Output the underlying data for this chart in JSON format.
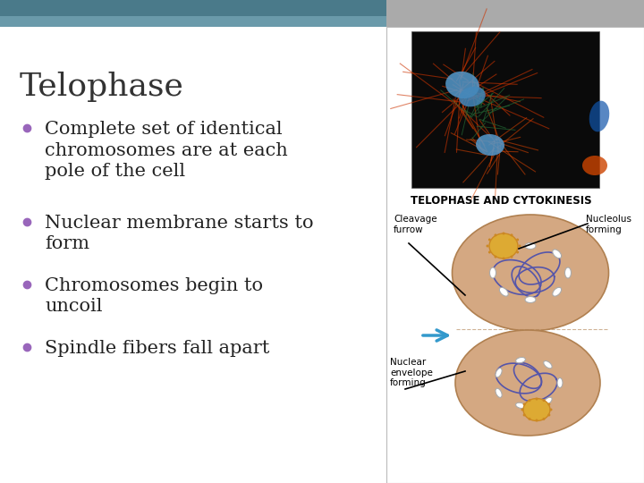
{
  "title": "Telophase",
  "bullets": [
    "Complete set of identical\nchromosomes are at each\npole of the cell",
    "Nuclear membrane starts to\nform",
    "Chromosomes begin to\nuncoil",
    "Spindle fibers fall apart"
  ],
  "bullet_color": "#9966bb",
  "title_color": "#333333",
  "text_color": "#222222",
  "bg_color": "#ffffff",
  "header_bar_color1": "#4a7a8a",
  "header_bar_color2": "#6a9aaa",
  "right_panel_bg": "#ffffff",
  "right_panel_border": "#bbbbbb",
  "diagram_label": "TELOPHASE AND CYTOKINESIS",
  "label_cleavage": "Cleavage\nfurrow",
  "label_nucleolus": "Nucleolus\nforming",
  "label_nuclear": "Nuclear\nenvelope\nforming",
  "cell_color": "#d4a882",
  "cell_edge_color": "#b08050",
  "chromosome_color": "#5555aa",
  "chrom_fill": "#8888cc",
  "nucleolus_color": "#ddaa33",
  "nucleolus_dot_color": "#cc8822",
  "arrow_color": "#3399cc",
  "title_fontsize": 26,
  "bullet_fontsize": 15,
  "diagram_label_fontsize": 8.5,
  "label_fontsize": 7.5
}
